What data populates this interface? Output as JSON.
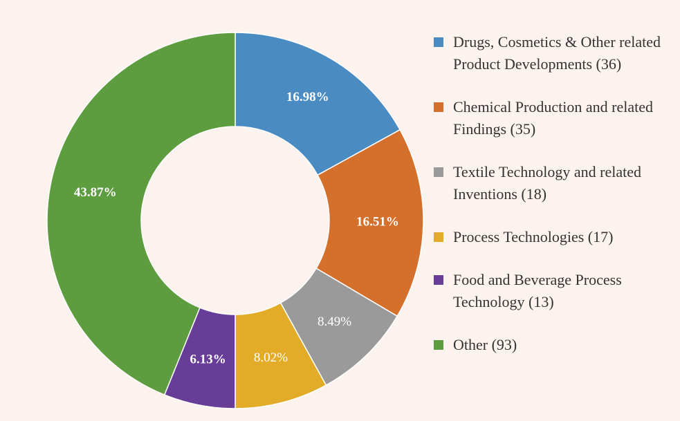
{
  "chart_data": {
    "type": "pie",
    "categories": [
      "Drugs, Cosmetics & Other related Product Developments (36)",
      "Chemical Production and related Findings (35)",
      "Textile Technology and related Inventions (18)",
      "Process Technologies (17)",
      "Food and Beverage Process Technology (13)",
      "Other (93)"
    ],
    "values": [
      16.98,
      16.51,
      8.49,
      8.02,
      6.13,
      43.87
    ],
    "value_labels": [
      "16.98%",
      "16.51%",
      "8.49%",
      "8.02%",
      "6.13%",
      "43.87%"
    ],
    "colors": [
      "#4a8bc2",
      "#d4702c",
      "#9a9a9a",
      "#e2ac28",
      "#673d98",
      "#5e9c40"
    ]
  }
}
